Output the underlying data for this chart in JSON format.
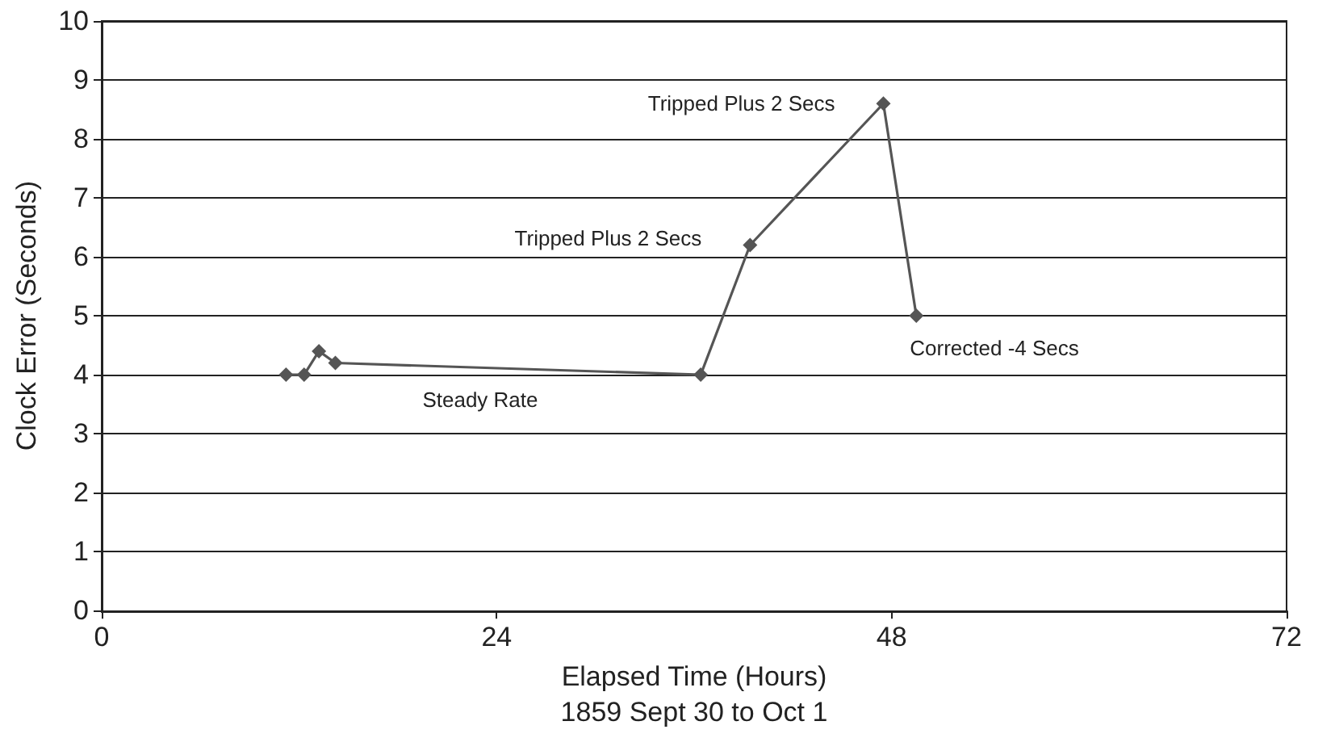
{
  "chart_data": {
    "type": "line",
    "xlabel": "Elapsed Time (Hours)\n1859 Sept 30 to Oct 1",
    "ylabel": "Clock Error (Seconds)",
    "x": [
      11.2,
      12.3,
      13.2,
      14.2,
      36.4,
      39.4,
      47.5,
      49.5
    ],
    "series": [
      {
        "color": "#555555",
        "values": [
          4,
          4,
          4.4,
          4.2,
          4,
          6.2,
          8.6,
          5
        ]
      }
    ],
    "xlim": [
      0,
      72
    ],
    "xticks": [
      0,
      24,
      48,
      72
    ],
    "ylim": [
      0,
      10
    ],
    "yticks": [
      0,
      1,
      2,
      3,
      4,
      5,
      6,
      7,
      8,
      9,
      10
    ],
    "grid": "y",
    "marker": "diamond",
    "line_style": "solid",
    "annotations": [
      {
        "text": "Steady Rate",
        "x": 23,
        "y": 4.12
      },
      {
        "text": "Tripped Plus 2 Secs",
        "x": 39.4,
        "y": 6.2
      },
      {
        "text": "Tripped Plus 2 Secs",
        "x": 47.5,
        "y": 8.6
      },
      {
        "text": "Corrected -4 Secs",
        "x": 49.5,
        "y": 5
      }
    ]
  }
}
